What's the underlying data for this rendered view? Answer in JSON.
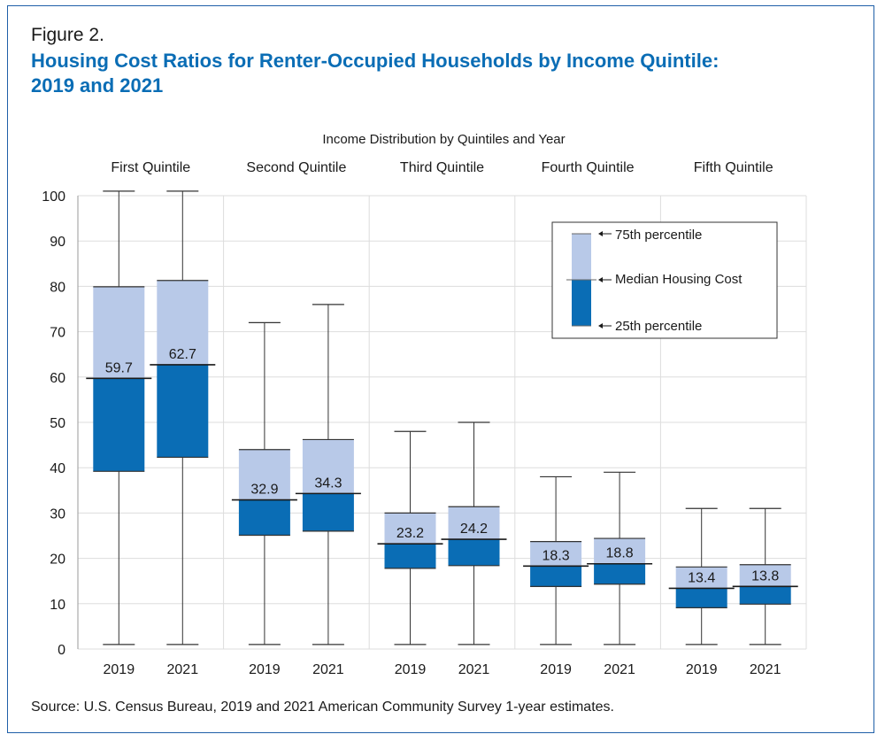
{
  "figure_label": "Figure 2.",
  "title_line1": "Housing Cost Ratios for Renter-Occupied Households by Income Quintile:",
  "title_line2": "2019 and 2021",
  "source": "Source: U.S. Census Bureau, 2019 and 2021 American Community Survey 1-year estimates.",
  "colors": {
    "upper_box": "#b8c9e8",
    "lower_box": "#0a6db5",
    "title": "#0a6db5",
    "grid": "#dddddd"
  },
  "chart_data": {
    "type": "boxplot",
    "top_label": "Income Distribution by Quintiles and Year",
    "ylim": [
      0,
      100
    ],
    "yticks": [
      0,
      10,
      20,
      30,
      40,
      50,
      60,
      70,
      80,
      90,
      100
    ],
    "grid": true,
    "legend_position": "top-right",
    "legend": {
      "p75": "75th percentile",
      "median": "Median Housing Cost",
      "p25": "25th percentile"
    },
    "groups": [
      {
        "name": "First Quintile",
        "boxes": [
          {
            "year": "2019",
            "whisker_low": 1,
            "p25": 39.2,
            "median": 59.7,
            "p75": 79.9,
            "whisker_high": 101
          },
          {
            "year": "2021",
            "whisker_low": 1,
            "p25": 42.3,
            "median": 62.7,
            "p75": 81.3,
            "whisker_high": 101
          }
        ]
      },
      {
        "name": "Second Quintile",
        "boxes": [
          {
            "year": "2019",
            "whisker_low": 1,
            "p25": 25.1,
            "median": 32.9,
            "p75": 44.0,
            "whisker_high": 72
          },
          {
            "year": "2021",
            "whisker_low": 1,
            "p25": 26.0,
            "median": 34.3,
            "p75": 46.2,
            "whisker_high": 76
          }
        ]
      },
      {
        "name": "Third Quintile",
        "boxes": [
          {
            "year": "2019",
            "whisker_low": 1,
            "p25": 17.8,
            "median": 23.2,
            "p75": 30.0,
            "whisker_high": 48
          },
          {
            "year": "2021",
            "whisker_low": 1,
            "p25": 18.4,
            "median": 24.2,
            "p75": 31.4,
            "whisker_high": 50
          }
        ]
      },
      {
        "name": "Fourth Quintile",
        "boxes": [
          {
            "year": "2019",
            "whisker_low": 1,
            "p25": 13.8,
            "median": 18.3,
            "p75": 23.7,
            "whisker_high": 38
          },
          {
            "year": "2021",
            "whisker_low": 1,
            "p25": 14.3,
            "median": 18.8,
            "p75": 24.4,
            "whisker_high": 39
          }
        ]
      },
      {
        "name": "Fifth Quintile",
        "boxes": [
          {
            "year": "2019",
            "whisker_low": 1,
            "p25": 9.1,
            "median": 13.4,
            "p75": 18.1,
            "whisker_high": 31
          },
          {
            "year": "2021",
            "whisker_low": 1,
            "p25": 9.9,
            "median": 13.8,
            "p75": 18.6,
            "whisker_high": 31
          }
        ]
      }
    ]
  }
}
